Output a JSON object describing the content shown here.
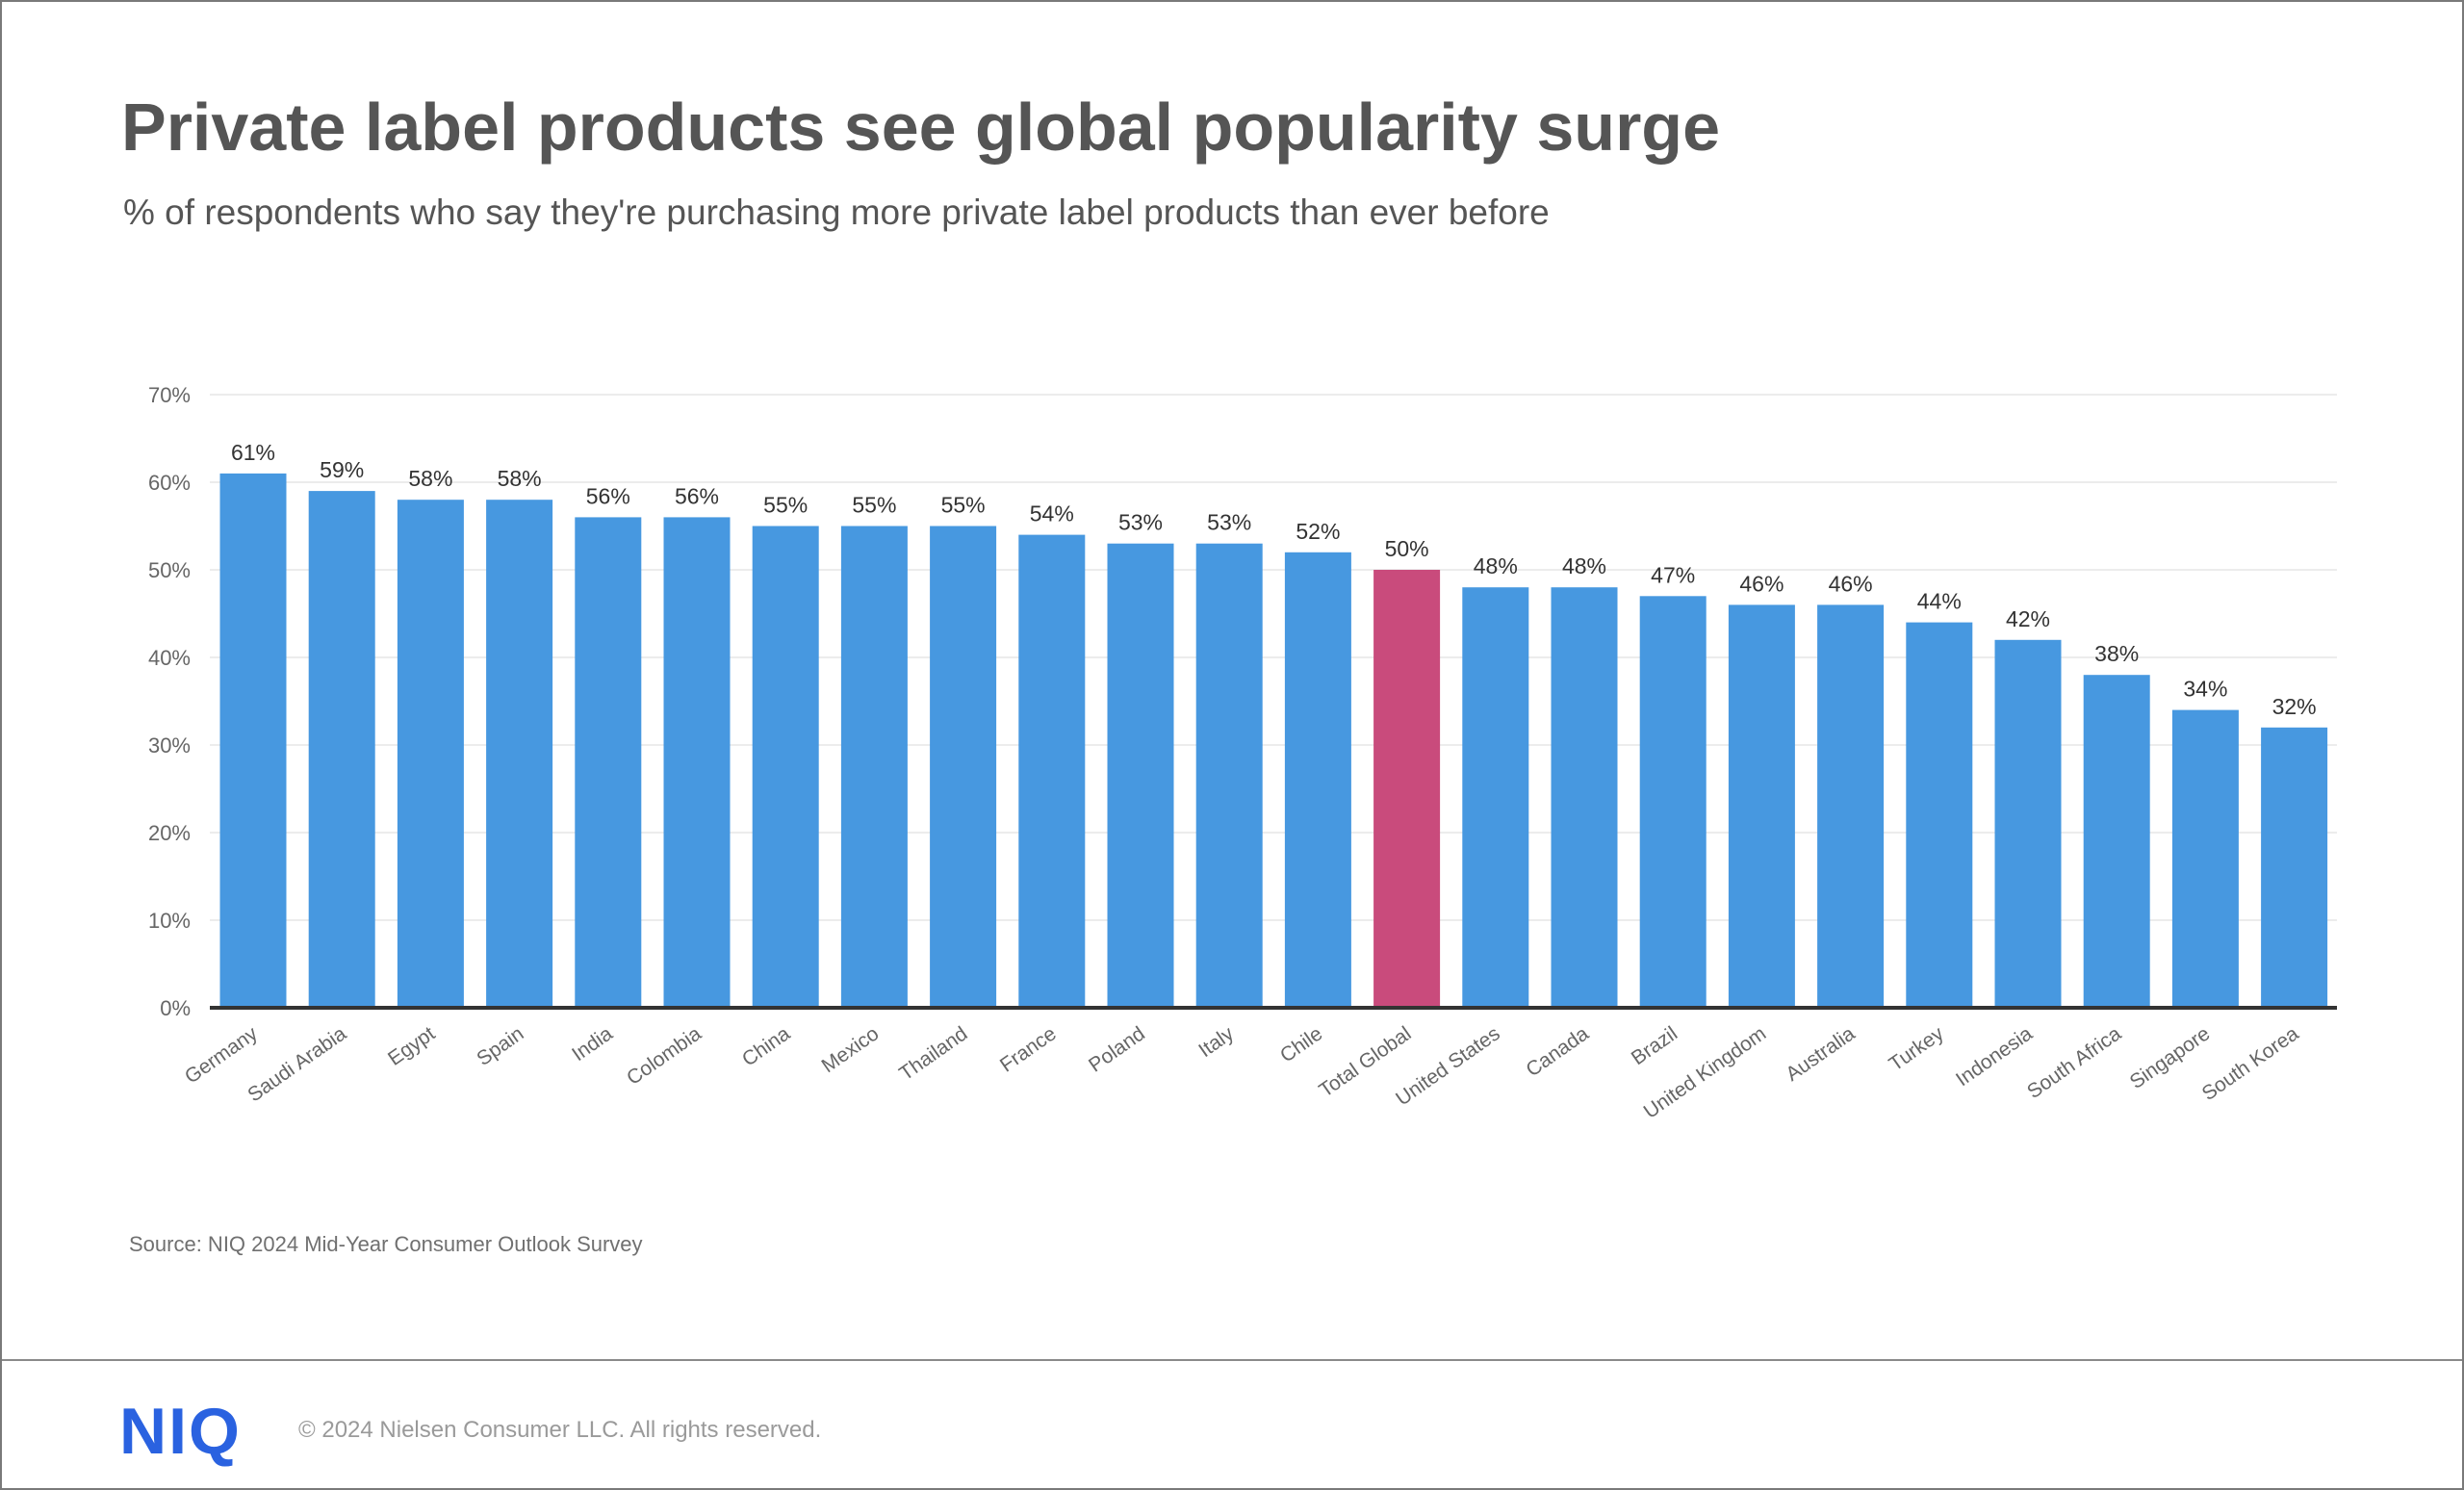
{
  "header": {
    "title": "Private label products see global popularity surge",
    "subtitle": "% of respondents who say they're purchasing more private label products than ever before"
  },
  "colors": {
    "bar": "#4798e0",
    "highlight": "#c94b7c",
    "axis": "#333333",
    "grid": "#e6e6e6",
    "tick_text": "#666666",
    "label_text": "#333333"
  },
  "chart_data": {
    "type": "bar",
    "title": "Private label products see global popularity surge",
    "subtitle": "% of respondents who say they're purchasing more private label products than ever before",
    "xlabel": "",
    "ylabel": "",
    "ylim": [
      0,
      70
    ],
    "yticks": [
      0,
      10,
      20,
      30,
      40,
      50,
      60,
      70
    ],
    "ytick_labels": [
      "0%",
      "10%",
      "20%",
      "30%",
      "40%",
      "50%",
      "60%",
      "70%"
    ],
    "grid": true,
    "legend": "none",
    "categories": [
      "Germany",
      "Saudi Arabia",
      "Egypt",
      "Spain",
      "India",
      "Colombia",
      "China",
      "Mexico",
      "Thailand",
      "France",
      "Poland",
      "Italy",
      "Chile",
      "Total Global",
      "United States",
      "Canada",
      "Brazil",
      "United Kingdom",
      "Australia",
      "Turkey",
      "Indonesia",
      "South Africa",
      "Singapore",
      "South Korea"
    ],
    "values": [
      61,
      59,
      58,
      58,
      56,
      56,
      55,
      55,
      55,
      54,
      53,
      53,
      52,
      50,
      48,
      48,
      47,
      46,
      46,
      44,
      42,
      38,
      34,
      32
    ],
    "data_labels": [
      "61%",
      "59%",
      "58%",
      "58%",
      "56%",
      "56%",
      "55%",
      "55%",
      "55%",
      "54%",
      "53%",
      "53%",
      "52%",
      "50%",
      "48%",
      "48%",
      "47%",
      "46%",
      "46%",
      "44%",
      "42%",
      "38%",
      "34%",
      "32%"
    ],
    "highlighted_category": "Total Global"
  },
  "footer": {
    "source": "Source: NIQ 2024 Mid-Year Consumer Outlook Survey",
    "logo_text": "NIQ",
    "copyright": "© 2024 Nielsen Consumer LLC. All rights reserved."
  }
}
